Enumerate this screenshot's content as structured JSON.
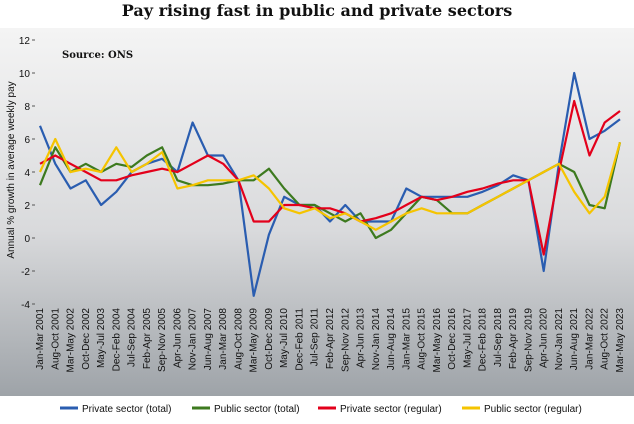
{
  "chart_data": {
    "type": "line",
    "title": "Pay rising fast in public and private sectors",
    "annotation": "Source: ONS",
    "y_label": "Annual % growth in average weekly pay",
    "categories": [
      "Jan-Mar 2001",
      "Aug-Oct 2001",
      "Mar-May 2002",
      "Oct-Dec 2002",
      "May-Jul 2003",
      "Dec-Feb 2004",
      "Jul-Sep 2004",
      "Feb-Apr 2005",
      "Sep-Nov 2005",
      "Apr-Jun 2006",
      "Nov-Jan 2007",
      "Jun-Aug 2007",
      "Jan-Mar 2008",
      "Aug-Oct 2008",
      "Mar-May 2009",
      "Oct-Dec 2009",
      "May-Jul 2010",
      "Dec-Feb 2011",
      "Jul-Sep 2011",
      "Feb-Apr 2012",
      "Sep-Nov 2012",
      "Apr-Jun 2013",
      "Nov-Jan 2014",
      "Jun-Aug 2014",
      "Jan-Mar 2015",
      "Aug-Oct 2015",
      "Mar-May 2016",
      "Oct-Dec 2016",
      "May-Jul 2017",
      "Dec-Feb 2018",
      "Jul-Sep 2018",
      "Feb-Apr 2019",
      "Sep-Nov 2019",
      "Apr-Jun 2020",
      "Nov-Jan 2021",
      "Jun-Aug 2021",
      "Jan-Mar 2022",
      "Aug-Oct 2022",
      "Mar-May 2023"
    ],
    "series": [
      {
        "name": "Private sector (total)",
        "color": "#2a5db0",
        "values": [
          6.8,
          4.5,
          3.0,
          3.5,
          2.0,
          2.8,
          4.0,
          4.5,
          4.8,
          4.0,
          7.0,
          5.0,
          5.0,
          3.5,
          -3.5,
          0.2,
          2.5,
          2.0,
          2.0,
          1.0,
          2.0,
          1.0,
          1.0,
          1.0,
          3.0,
          2.5,
          2.5,
          2.5,
          2.5,
          2.8,
          3.2,
          3.8,
          3.5,
          -2.0,
          4.5,
          10.0,
          6.0,
          6.5,
          7.2
        ]
      },
      {
        "name": "Public sector (total)",
        "color": "#3d7a1f",
        "values": [
          3.2,
          5.5,
          4.0,
          4.5,
          4.0,
          4.5,
          4.3,
          5.0,
          5.5,
          3.5,
          3.2,
          3.2,
          3.3,
          3.5,
          3.5,
          4.2,
          3.0,
          2.0,
          2.0,
          1.5,
          1.0,
          1.5,
          0.0,
          0.5,
          1.5,
          2.5,
          2.3,
          1.5,
          1.5,
          2.0,
          2.5,
          3.0,
          3.5,
          4.0,
          4.5,
          4.0,
          2.0,
          1.8,
          5.8
        ]
      },
      {
        "name": "Private sector (regular)",
        "color": "#e3001b",
        "values": [
          4.5,
          5.0,
          4.5,
          4.0,
          3.5,
          3.5,
          3.8,
          4.0,
          4.2,
          4.0,
          4.5,
          5.0,
          4.5,
          3.5,
          1.0,
          1.0,
          2.0,
          2.0,
          1.8,
          1.8,
          1.5,
          1.0,
          1.2,
          1.5,
          2.0,
          2.5,
          2.3,
          2.5,
          2.8,
          3.0,
          3.3,
          3.5,
          3.5,
          -1.0,
          4.0,
          8.3,
          5.0,
          7.0,
          7.7
        ]
      },
      {
        "name": "Public sector (regular)",
        "color": "#f5c400",
        "values": [
          4.0,
          6.0,
          4.0,
          4.2,
          4.0,
          5.5,
          4.0,
          4.5,
          5.2,
          3.0,
          3.2,
          3.5,
          3.5,
          3.5,
          3.8,
          3.0,
          1.8,
          1.5,
          1.8,
          1.2,
          1.5,
          1.0,
          0.5,
          1.0,
          1.5,
          1.8,
          1.5,
          1.5,
          1.5,
          2.0,
          2.5,
          3.0,
          3.5,
          4.0,
          4.5,
          2.8,
          1.5,
          2.5,
          5.8
        ]
      }
    ],
    "ylim": [
      -4,
      12
    ],
    "yticks": [
      -4,
      -2,
      0,
      2,
      4,
      6,
      8,
      10,
      12
    ],
    "grid": false,
    "legend": "bottom"
  }
}
